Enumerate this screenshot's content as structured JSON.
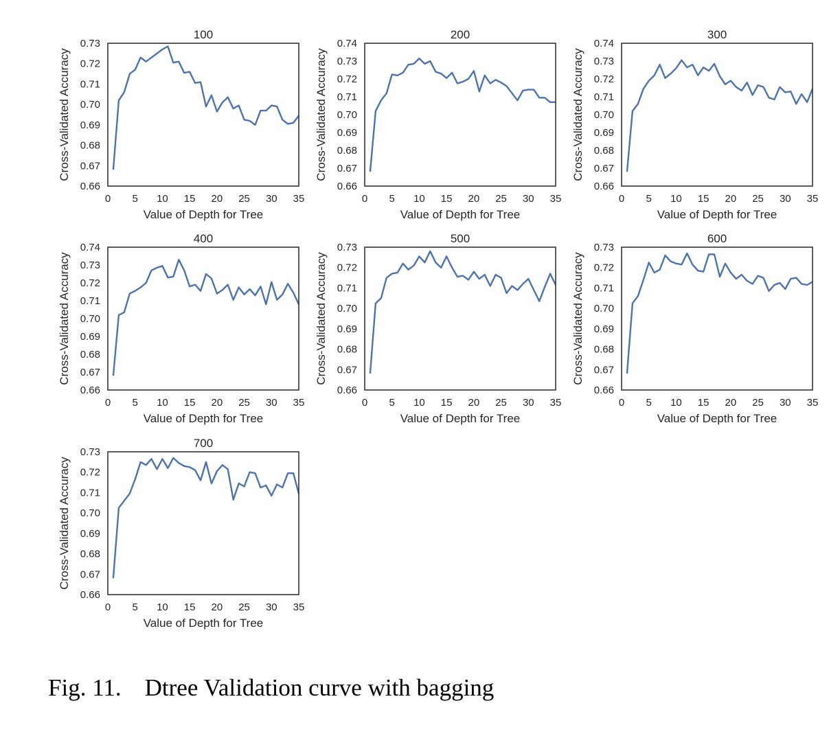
{
  "caption": {
    "number": "Fig. 11.",
    "text": "Dtree Validation curve with bagging"
  },
  "style": {
    "line_color": "#4c72b0",
    "frame_color": "#333333",
    "text_color": "#262626"
  },
  "chart_data": [
    {
      "type": "line",
      "title": "100",
      "xlabel": "Value of Depth for Tree",
      "ylabel": "Cross-Validated Accuracy",
      "xlim": [
        0,
        35
      ],
      "ylim": [
        0.66,
        0.73
      ],
      "xticks": [
        "0",
        "5",
        "10",
        "15",
        "20",
        "25",
        "30",
        "35"
      ],
      "yticks": [
        "0.66",
        "0.67",
        "0.68",
        "0.69",
        "0.70",
        "0.71",
        "0.72",
        "0.73"
      ],
      "grid": false,
      "series": [
        {
          "x": [
            1,
            2,
            3,
            4,
            5,
            6,
            7,
            8,
            9,
            10,
            11,
            12,
            13,
            14,
            15,
            16,
            17,
            18,
            19,
            20,
            21,
            22,
            23,
            24,
            25,
            26,
            27,
            28,
            29,
            30,
            31,
            32,
            33,
            34,
            35
          ],
          "y": [
            0.668,
            0.702,
            0.706,
            0.715,
            0.717,
            0.723,
            0.721,
            0.723,
            0.725,
            0.727,
            0.7285,
            0.7205,
            0.721,
            0.7155,
            0.716,
            0.7105,
            0.711,
            0.699,
            0.7045,
            0.6965,
            0.701,
            0.7035,
            0.698,
            0.6995,
            0.6925,
            0.692,
            0.69,
            0.697,
            0.697,
            0.6995,
            0.699,
            0.6925,
            0.6905,
            0.691,
            0.6945
          ]
        }
      ]
    },
    {
      "type": "line",
      "title": "200",
      "xlabel": "Value of Depth for Tree",
      "ylabel": "Cross-Validated Accuracy",
      "xlim": [
        0,
        35
      ],
      "ylim": [
        0.66,
        0.74
      ],
      "xticks": [
        "0",
        "5",
        "10",
        "15",
        "20",
        "25",
        "30",
        "35"
      ],
      "yticks": [
        "0.66",
        "0.67",
        "0.68",
        "0.69",
        "0.70",
        "0.71",
        "0.72",
        "0.73",
        "0.74"
      ],
      "grid": false,
      "series": [
        {
          "x": [
            1,
            2,
            3,
            4,
            5,
            6,
            7,
            8,
            9,
            10,
            11,
            12,
            13,
            14,
            15,
            16,
            17,
            18,
            19,
            20,
            21,
            22,
            23,
            24,
            25,
            26,
            27,
            28,
            29,
            30,
            31,
            32,
            33,
            34,
            35
          ],
          "y": [
            0.668,
            0.702,
            0.708,
            0.712,
            0.7225,
            0.722,
            0.7235,
            0.728,
            0.7285,
            0.7315,
            0.7285,
            0.73,
            0.724,
            0.723,
            0.7205,
            0.7235,
            0.7175,
            0.7185,
            0.72,
            0.7245,
            0.713,
            0.722,
            0.7175,
            0.7195,
            0.718,
            0.716,
            0.712,
            0.708,
            0.7135,
            0.714,
            0.714,
            0.7095,
            0.7095,
            0.707,
            0.707
          ]
        }
      ]
    },
    {
      "type": "line",
      "title": "300",
      "xlabel": "Value of Depth for Tree",
      "ylabel": "Cross-Validated Accuracy",
      "xlim": [
        0,
        35
      ],
      "ylim": [
        0.66,
        0.74
      ],
      "xticks": [
        "0",
        "5",
        "10",
        "15",
        "20",
        "25",
        "30",
        "35"
      ],
      "yticks": [
        "0.66",
        "0.67",
        "0.68",
        "0.69",
        "0.70",
        "0.71",
        "0.72",
        "0.73",
        "0.74"
      ],
      "grid": false,
      "series": [
        {
          "x": [
            1,
            2,
            3,
            4,
            5,
            6,
            7,
            8,
            9,
            10,
            11,
            12,
            13,
            14,
            15,
            16,
            17,
            18,
            19,
            20,
            21,
            22,
            23,
            24,
            25,
            26,
            27,
            28,
            29,
            30,
            31,
            32,
            33,
            34,
            35
          ],
          "y": [
            0.668,
            0.702,
            0.706,
            0.7145,
            0.719,
            0.722,
            0.728,
            0.7205,
            0.723,
            0.726,
            0.7305,
            0.7265,
            0.728,
            0.722,
            0.7265,
            0.7245,
            0.7285,
            0.7215,
            0.717,
            0.719,
            0.7155,
            0.7135,
            0.718,
            0.711,
            0.7165,
            0.7155,
            0.7095,
            0.7085,
            0.7155,
            0.7125,
            0.713,
            0.706,
            0.7115,
            0.707,
            0.7145
          ]
        }
      ]
    },
    {
      "type": "line",
      "title": "400",
      "xlabel": "Value of Depth for Tree",
      "ylabel": "Cross-Validated Accuracy",
      "xlim": [
        0,
        35
      ],
      "ylim": [
        0.66,
        0.74
      ],
      "xticks": [
        "0",
        "5",
        "10",
        "15",
        "20",
        "25",
        "30",
        "35"
      ],
      "yticks": [
        "0.66",
        "0.67",
        "0.68",
        "0.69",
        "0.70",
        "0.71",
        "0.72",
        "0.73",
        "0.74"
      ],
      "grid": false,
      "series": [
        {
          "x": [
            1,
            2,
            3,
            4,
            5,
            6,
            7,
            8,
            9,
            10,
            11,
            12,
            13,
            14,
            15,
            16,
            17,
            18,
            19,
            20,
            21,
            22,
            23,
            24,
            25,
            26,
            27,
            28,
            29,
            30,
            31,
            32,
            33,
            34,
            35
          ],
          "y": [
            0.668,
            0.702,
            0.7035,
            0.714,
            0.7155,
            0.7175,
            0.72,
            0.727,
            0.7285,
            0.7295,
            0.723,
            0.7235,
            0.733,
            0.727,
            0.718,
            0.719,
            0.7155,
            0.725,
            0.7225,
            0.714,
            0.716,
            0.719,
            0.7105,
            0.7175,
            0.7135,
            0.7165,
            0.713,
            0.718,
            0.708,
            0.7205,
            0.7105,
            0.7135,
            0.7195,
            0.7145,
            0.708
          ]
        }
      ]
    },
    {
      "type": "line",
      "title": "500",
      "xlabel": "Value of Depth for Tree",
      "ylabel": "Cross-Validated Accuracy",
      "xlim": [
        0,
        35
      ],
      "ylim": [
        0.66,
        0.73
      ],
      "xticks": [
        "0",
        "5",
        "10",
        "15",
        "20",
        "25",
        "30",
        "35"
      ],
      "yticks": [
        "0.66",
        "0.67",
        "0.68",
        "0.69",
        "0.70",
        "0.71",
        "0.72",
        "0.73"
      ],
      "grid": false,
      "series": [
        {
          "x": [
            1,
            2,
            3,
            4,
            5,
            6,
            7,
            8,
            9,
            10,
            11,
            12,
            13,
            14,
            15,
            16,
            17,
            18,
            19,
            20,
            21,
            22,
            23,
            24,
            25,
            26,
            27,
            28,
            29,
            30,
            31,
            32,
            33,
            34,
            35
          ],
          "y": [
            0.668,
            0.7025,
            0.705,
            0.715,
            0.717,
            0.7175,
            0.722,
            0.719,
            0.721,
            0.7255,
            0.7225,
            0.728,
            0.7225,
            0.72,
            0.7255,
            0.72,
            0.7155,
            0.716,
            0.714,
            0.718,
            0.7145,
            0.7165,
            0.711,
            0.7165,
            0.715,
            0.7075,
            0.711,
            0.709,
            0.712,
            0.7145,
            0.709,
            0.7035,
            0.7105,
            0.717,
            0.7115
          ]
        }
      ]
    },
    {
      "type": "line",
      "title": "600",
      "xlabel": "Value of Depth for Tree",
      "ylabel": "Cross-Validated Accuracy",
      "xlim": [
        0,
        35
      ],
      "ylim": [
        0.66,
        0.73
      ],
      "xticks": [
        "0",
        "5",
        "10",
        "15",
        "20",
        "25",
        "30",
        "35"
      ],
      "yticks": [
        "0.66",
        "0.67",
        "0.68",
        "0.69",
        "0.70",
        "0.71",
        "0.72",
        "0.73"
      ],
      "grid": false,
      "series": [
        {
          "x": [
            1,
            2,
            3,
            4,
            5,
            6,
            7,
            8,
            9,
            10,
            11,
            12,
            13,
            14,
            15,
            16,
            17,
            18,
            19,
            20,
            21,
            22,
            23,
            24,
            25,
            26,
            27,
            28,
            29,
            30,
            31,
            32,
            33,
            34,
            35
          ],
          "y": [
            0.668,
            0.7025,
            0.706,
            0.714,
            0.7225,
            0.7175,
            0.719,
            0.726,
            0.723,
            0.722,
            0.7215,
            0.727,
            0.7215,
            0.7185,
            0.718,
            0.7265,
            0.7265,
            0.7155,
            0.722,
            0.7175,
            0.7145,
            0.7165,
            0.7135,
            0.712,
            0.716,
            0.715,
            0.7085,
            0.7115,
            0.7125,
            0.7095,
            0.7145,
            0.715,
            0.712,
            0.7115,
            0.713
          ]
        }
      ]
    },
    {
      "type": "line",
      "title": "700",
      "xlabel": "Value of Depth for Tree",
      "ylabel": "Cross-Validated Accuracy",
      "xlim": [
        0,
        35
      ],
      "ylim": [
        0.66,
        0.73
      ],
      "xticks": [
        "0",
        "5",
        "10",
        "15",
        "20",
        "25",
        "30",
        "35"
      ],
      "yticks": [
        "0.66",
        "0.67",
        "0.68",
        "0.69",
        "0.70",
        "0.71",
        "0.72",
        "0.73"
      ],
      "grid": false,
      "series": [
        {
          "x": [
            1,
            2,
            3,
            4,
            5,
            6,
            7,
            8,
            9,
            10,
            11,
            12,
            13,
            14,
            15,
            16,
            17,
            18,
            19,
            20,
            21,
            22,
            23,
            24,
            25,
            26,
            27,
            28,
            29,
            30,
            31,
            32,
            33,
            34,
            35
          ],
          "y": [
            0.668,
            0.7025,
            0.706,
            0.7095,
            0.7165,
            0.725,
            0.7235,
            0.7265,
            0.7215,
            0.7265,
            0.722,
            0.727,
            0.7245,
            0.723,
            0.7225,
            0.721,
            0.716,
            0.725,
            0.7145,
            0.7205,
            0.7235,
            0.7215,
            0.7065,
            0.7145,
            0.713,
            0.72,
            0.7195,
            0.7125,
            0.7135,
            0.7085,
            0.714,
            0.7125,
            0.7195,
            0.7195,
            0.7095
          ]
        }
      ]
    }
  ]
}
